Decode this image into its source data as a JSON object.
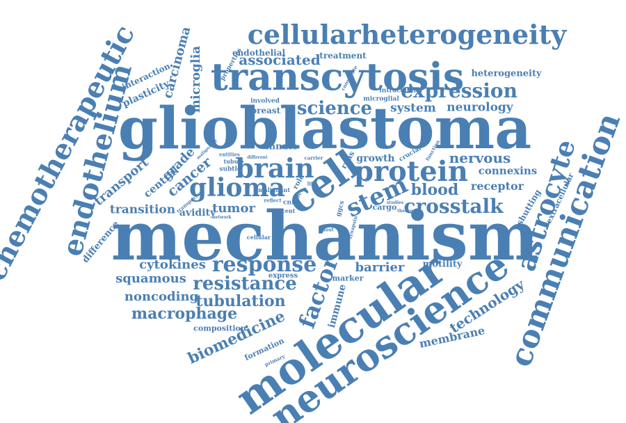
{
  "word_cloud": {
    "color": "#4a7fb3",
    "words": [
      "mechanism",
      "glioblastoma",
      "transcytosis",
      "cellularheterogeneity",
      "cell",
      "molecular",
      "neuroscience",
      "communication",
      "chemotherapeutic",
      "endothelium",
      "astrocyte",
      "protein",
      "brain",
      "glioma",
      "stem",
      "crosstalk",
      "response",
      "resistance",
      "tubulation",
      "macrophage",
      "expression",
      "science",
      "factor",
      "biomedicine",
      "technology",
      "membrane",
      "cytokines",
      "squamous",
      "noncoding",
      "barrier",
      "tumor",
      "transition",
      "transport",
      "cancer",
      "grade",
      "central",
      "blood",
      "receptor",
      "nervous",
      "connexins",
      "system",
      "neurology",
      "associated",
      "heterogeneity",
      "microglia",
      "carcinoma",
      "plasticity",
      "interaction",
      "difference",
      "extracellular",
      "shutting",
      "motility",
      "immune",
      "growth",
      "innate",
      "endothelial",
      "treatment",
      "composition",
      "formation",
      "express",
      "marker",
      "avidity",
      "breast",
      "involved",
      "microglial",
      "intracellular",
      "properties",
      "cargo",
      "rnas",
      "ggcs",
      "cnf",
      "cellular",
      "malignant",
      "subtle",
      "tubule",
      "reflect",
      "role",
      "bee",
      "recent",
      "network",
      "crucial",
      "function",
      "synapsin",
      "constitute",
      "entities",
      "different",
      "carrier",
      "primary",
      "malignancy",
      "transporter",
      "most",
      "life",
      "therapy",
      "studies"
    ]
  }
}
